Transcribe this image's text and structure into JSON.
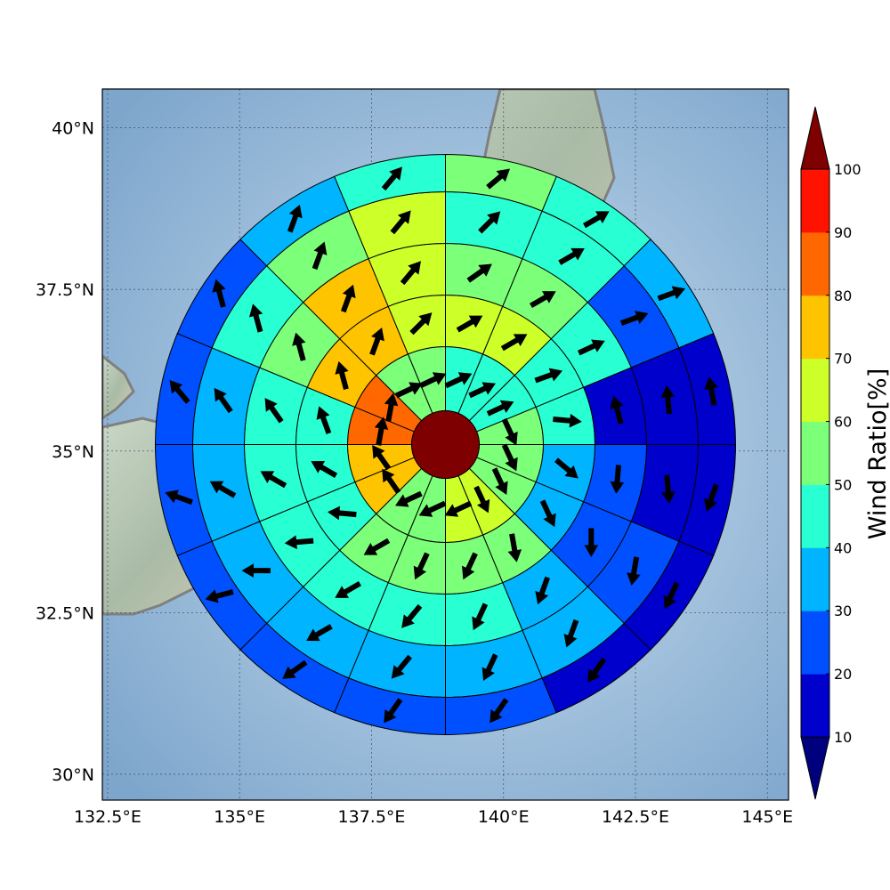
{
  "map": {
    "lon_ticks": [
      "132.5°E",
      "135°E",
      "137.5°E",
      "140°E",
      "142.5°E",
      "145°E"
    ],
    "lat_ticks": [
      "40°N",
      "37.5°N",
      "35°N",
      "32.5°N",
      "30°N"
    ],
    "lon_tick_values": [
      132.5,
      135,
      137.5,
      140,
      142.5,
      145
    ],
    "lat_tick_values": [
      40,
      37.5,
      35,
      32.5,
      30
    ],
    "extent": {
      "lon": [
        132.4,
        145.4
      ],
      "lat": [
        29.6,
        40.6
      ]
    },
    "center": {
      "lon": 138.9,
      "lat": 35.1
    },
    "grid": true,
    "ocean_color": "#8fb2d2",
    "coastline_color": "#808080"
  },
  "colorbar": {
    "label": "Wind Ratio[%]",
    "ticks": [
      "10",
      "20",
      "30",
      "40",
      "50",
      "60",
      "70",
      "80",
      "90",
      "100"
    ],
    "levels": [
      10,
      20,
      30,
      40,
      50,
      60,
      70,
      80,
      90,
      100
    ],
    "band_colors": [
      "#0000cd",
      "#0050ff",
      "#00b4ff",
      "#28ffd2",
      "#7cff79",
      "#cdff29",
      "#ffc400",
      "#ff6800",
      "#ff1300"
    ],
    "under_color": "#00007f",
    "over_color": "#7f0000"
  },
  "chart_data": {
    "type": "heatmap",
    "description_of_grid": "polar sectors: 5 rings x 16 azimuth sectors (clockwise from north), values in Wind Ratio %",
    "center_value": 100,
    "rings": [
      [
        45,
        45,
        45,
        55,
        55,
        55,
        65,
        65,
        55,
        55,
        75,
        75,
        85,
        85,
        55,
        55
      ],
      [
        65,
        65,
        45,
        45,
        35,
        35,
        55,
        55,
        55,
        55,
        45,
        45,
        45,
        75,
        75,
        65
      ],
      [
        55,
        55,
        45,
        15,
        25,
        25,
        35,
        45,
        45,
        45,
        45,
        45,
        45,
        55,
        75,
        65
      ],
      [
        45,
        45,
        25,
        15,
        15,
        25,
        35,
        35,
        35,
        35,
        35,
        35,
        35,
        45,
        55,
        65
      ],
      [
        55,
        45,
        35,
        15,
        15,
        15,
        15,
        25,
        25,
        25,
        25,
        25,
        25,
        25,
        35,
        45
      ]
    ],
    "wind_direction_deg": [
      [
        65,
        65,
        65,
        155,
        155,
        155,
        155,
        245,
        245,
        245,
        325,
        325,
        10,
        10,
        65,
        65
      ],
      [
        60,
        60,
        70,
        95,
        130,
        155,
        170,
        205,
        205,
        240,
        275,
        300,
        340,
        345,
        20,
        45
      ],
      [
        55,
        60,
        65,
        345,
        185,
        180,
        200,
        205,
        220,
        240,
        265,
        300,
        325,
        345,
        20,
        40
      ],
      [
        45,
        60,
        70,
        355,
        175,
        190,
        200,
        205,
        220,
        240,
        270,
        300,
        325,
        345,
        20,
        40
      ],
      [
        50,
        60,
        70,
        350,
        200,
        205,
        215,
        215,
        215,
        235,
        255,
        290,
        320,
        345,
        20,
        40
      ]
    ]
  }
}
